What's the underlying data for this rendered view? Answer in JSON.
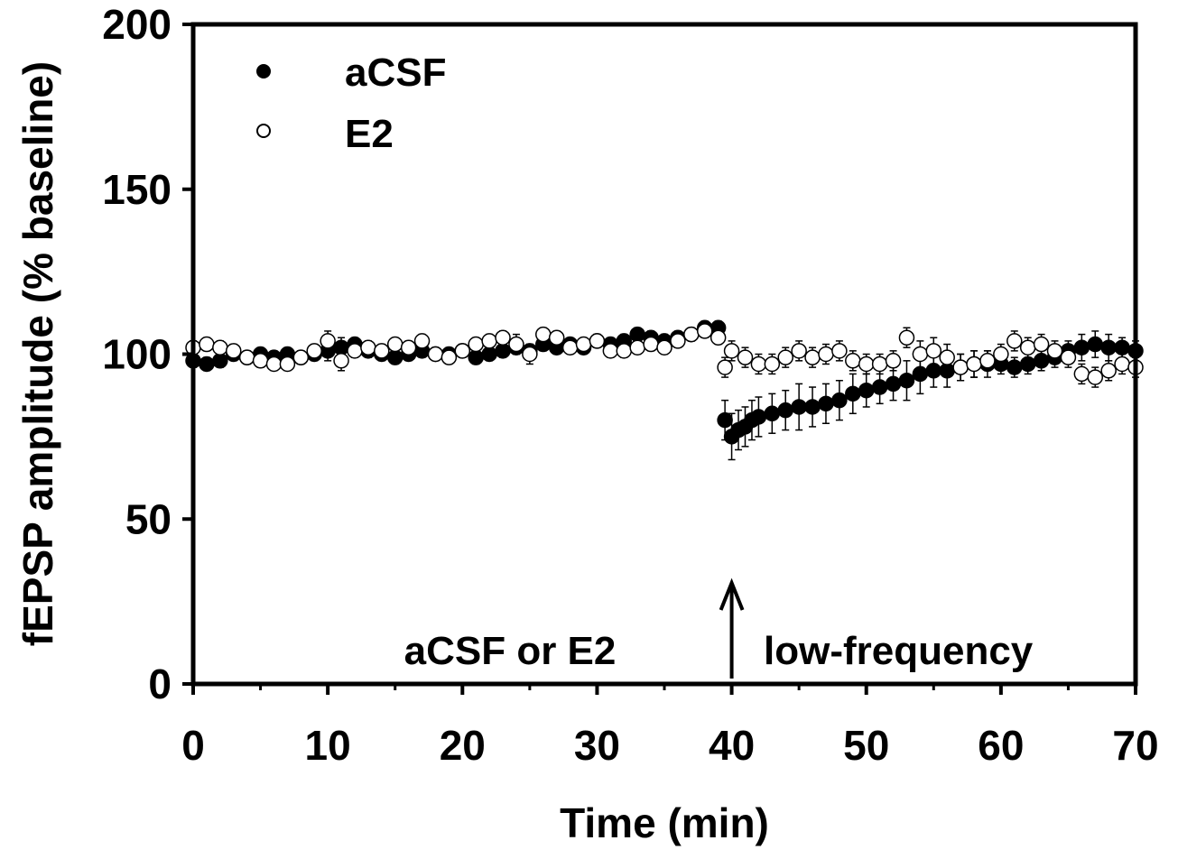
{
  "chart_data": {
    "type": "scatter",
    "title": "",
    "xlabel": "Time (min)",
    "ylabel": "fEPSP amplitude (% baseline)",
    "xlim": [
      0,
      70
    ],
    "ylim": [
      0,
      200
    ],
    "x_ticks": [
      "0",
      "10",
      "20",
      "30",
      "40",
      "50",
      "60",
      "70"
    ],
    "y_ticks": [
      "0",
      "50",
      "100",
      "150",
      "200"
    ],
    "grid": false,
    "legend_position": "top-left",
    "annotations": {
      "left_label": "aCSF or E2",
      "right_label": "low-frequency",
      "arrow_x": 40
    },
    "colors": {
      "aCSF": "#000000",
      "E2": "#ffffff",
      "axis": "#000000"
    },
    "series": [
      {
        "name": "aCSF",
        "marker": "filled-circle",
        "x": [
          0,
          1,
          2,
          3,
          4,
          5,
          6,
          7,
          8,
          9,
          10,
          11,
          12,
          13,
          14,
          15,
          16,
          17,
          18,
          19,
          20,
          21,
          22,
          23,
          24,
          25,
          26,
          27,
          28,
          29,
          30,
          31,
          32,
          33,
          34,
          35,
          36,
          37,
          38,
          39,
          39.5,
          40,
          40.5,
          41,
          41.5,
          42,
          43,
          44,
          45,
          46,
          47,
          48,
          49,
          50,
          51,
          52,
          53,
          54,
          55,
          56,
          57,
          58,
          59,
          60,
          61,
          62,
          63,
          64,
          65,
          66,
          67,
          68,
          69,
          70
        ],
        "y": [
          98,
          97,
          98,
          100,
          99,
          100,
          99,
          100,
          99,
          100,
          101,
          102,
          103,
          101,
          100,
          99,
          100,
          101,
          100,
          100,
          101,
          99,
          100,
          101,
          102,
          101,
          103,
          102,
          103,
          102,
          104,
          103,
          104,
          106,
          105,
          104,
          105,
          106,
          108,
          108,
          80,
          75,
          77,
          78,
          80,
          81,
          82,
          83,
          84,
          84,
          85,
          86,
          88,
          89,
          90,
          91,
          92,
          94,
          95,
          95,
          96,
          97,
          97,
          97,
          96,
          97,
          98,
          99,
          101,
          102,
          103,
          102,
          102,
          101
        ],
        "error": [
          2,
          2,
          2,
          2,
          2,
          2,
          2,
          2,
          2,
          2,
          3,
          3,
          2,
          2,
          2,
          2,
          2,
          2,
          2,
          2,
          2,
          2,
          2,
          2,
          2,
          2,
          2,
          2,
          2,
          2,
          2,
          2,
          2,
          2,
          2,
          2,
          2,
          2,
          2,
          2,
          6,
          7,
          6,
          6,
          6,
          6,
          6,
          6,
          7,
          6,
          6,
          6,
          6,
          5,
          5,
          5,
          6,
          6,
          5,
          5,
          4,
          4,
          4,
          3,
          3,
          3,
          3,
          3,
          3,
          4,
          4,
          4,
          3,
          3
        ]
      },
      {
        "name": "E2",
        "marker": "open-circle",
        "x": [
          0,
          1,
          2,
          3,
          4,
          5,
          6,
          7,
          8,
          9,
          10,
          11,
          12,
          13,
          14,
          15,
          16,
          17,
          18,
          19,
          20,
          21,
          22,
          23,
          24,
          25,
          26,
          27,
          28,
          29,
          30,
          31,
          32,
          33,
          34,
          35,
          36,
          37,
          38,
          39,
          39.5,
          40,
          41,
          42,
          43,
          44,
          45,
          46,
          47,
          48,
          49,
          50,
          51,
          52,
          53,
          54,
          55,
          56,
          57,
          58,
          59,
          60,
          61,
          62,
          63,
          64,
          65,
          66,
          67,
          68,
          69,
          70
        ],
        "y": [
          102,
          103,
          102,
          101,
          99,
          98,
          97,
          97,
          99,
          101,
          104,
          98,
          101,
          102,
          101,
          103,
          102,
          104,
          100,
          99,
          101,
          103,
          104,
          105,
          103,
          100,
          106,
          105,
          102,
          103,
          104,
          101,
          101,
          102,
          103,
          102,
          104,
          106,
          107,
          105,
          96,
          101,
          99,
          97,
          97,
          99,
          101,
          99,
          100,
          101,
          98,
          97,
          97,
          98,
          105,
          100,
          101,
          99,
          96,
          97,
          98,
          100,
          104,
          102,
          103,
          101,
          99,
          94,
          93,
          95,
          97,
          96
        ],
        "error": [
          2,
          2,
          2,
          2,
          2,
          2,
          2,
          2,
          2,
          2,
          3,
          3,
          2,
          2,
          2,
          2,
          2,
          2,
          2,
          2,
          2,
          2,
          2,
          2,
          3,
          3,
          2,
          2,
          2,
          2,
          2,
          2,
          2,
          2,
          2,
          2,
          2,
          2,
          2,
          2,
          3,
          3,
          3,
          3,
          3,
          3,
          3,
          3,
          3,
          3,
          3,
          3,
          3,
          3,
          3,
          4,
          4,
          4,
          4,
          4,
          3,
          3,
          3,
          3,
          3,
          3,
          3,
          3,
          3,
          3,
          3,
          3
        ]
      }
    ]
  }
}
